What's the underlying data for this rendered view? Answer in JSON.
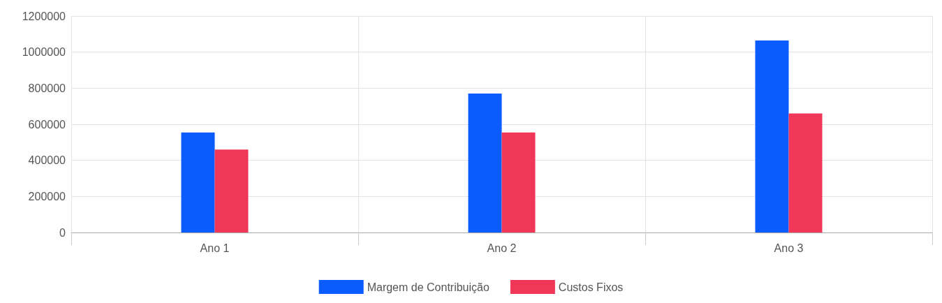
{
  "chart_data": {
    "type": "bar",
    "categories": [
      "Ano 1",
      "Ano 2",
      "Ano 3"
    ],
    "series": [
      {
        "name": "Margem de Contribuição",
        "color": "#0b5cff",
        "values": [
          555000,
          770000,
          1065000
        ]
      },
      {
        "name": "Custos Fixos",
        "color": "#f03758",
        "values": [
          460000,
          555000,
          660000
        ]
      }
    ],
    "ylim": [
      0,
      1200000
    ],
    "yticks": [
      0,
      200000,
      400000,
      600000,
      800000,
      1000000,
      1200000
    ],
    "grid": true,
    "legend": "bottom"
  }
}
